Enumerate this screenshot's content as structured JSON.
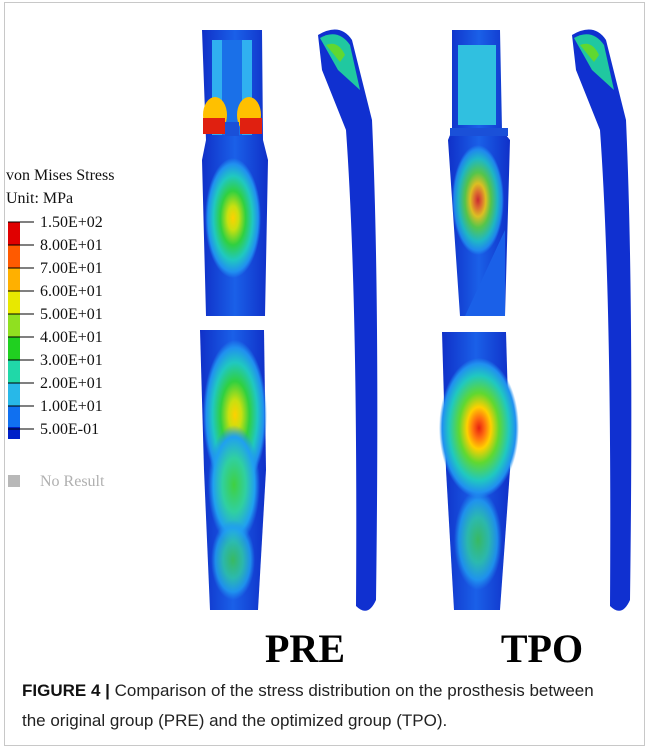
{
  "figure": {
    "legend": {
      "title": "von Mises Stress",
      "unit": "Unit: MPa",
      "labels": [
        "1.50E+02",
        "8.00E+01",
        "7.00E+01",
        "6.00E+01",
        "5.00E+01",
        "4.00E+01",
        "3.00E+01",
        "2.00E+01",
        "1.00E+01",
        "5.00E-01"
      ],
      "no_result": "No Result"
    },
    "panels": [
      "PRE",
      "TPO"
    ]
  },
  "caption": {
    "label": "FIGURE 4 |",
    "text": "Comparison of the stress distribution on the prosthesis between the original group (PRE) and the optimized group (TPO)."
  }
}
